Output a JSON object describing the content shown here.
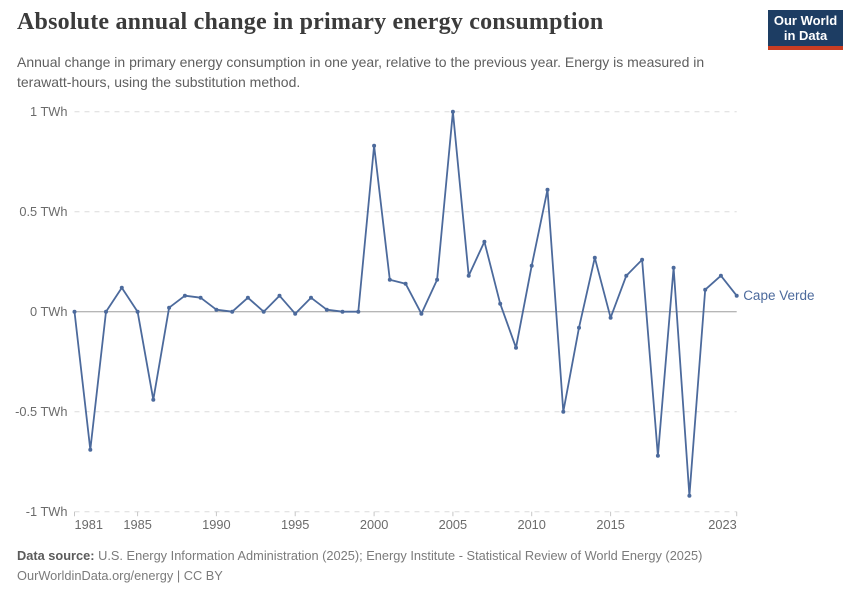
{
  "header": {
    "title": "Absolute annual change in primary energy consumption",
    "subtitle": "Annual change in primary energy consumption in one year, relative to the previous year. Energy is measured in terawatt-hours, using the substitution method.",
    "logo": {
      "line1": "Our World",
      "line2": "in Data",
      "bg": "#1d3d63",
      "stripe": "#c93d22"
    }
  },
  "chart_data": {
    "type": "line",
    "title": "Absolute annual change in primary energy consumption",
    "xlabel": "",
    "ylabel": "TWh",
    "ylim": [
      -1,
      1
    ],
    "grid": "horizontal-dashed",
    "legend_position": "right-of-line-end",
    "x": [
      1981,
      1982,
      1983,
      1984,
      1985,
      1986,
      1987,
      1988,
      1989,
      1990,
      1991,
      1992,
      1993,
      1994,
      1995,
      1996,
      1997,
      1998,
      1999,
      2000,
      2001,
      2002,
      2003,
      2004,
      2005,
      2006,
      2007,
      2008,
      2009,
      2010,
      2011,
      2012,
      2013,
      2014,
      2015,
      2016,
      2017,
      2018,
      2019,
      2020,
      2021,
      2022,
      2023
    ],
    "series": [
      {
        "name": "Cape Verde",
        "color": "#4c6a9c",
        "values": [
          0,
          -0.69,
          0,
          0.12,
          0,
          -0.44,
          0.02,
          0.08,
          0.07,
          0.01,
          0,
          0.07,
          0,
          0.08,
          -0.01,
          0.07,
          0.01,
          0,
          0,
          0.83,
          0.16,
          0.14,
          -0.01,
          0.16,
          1,
          0.18,
          0.35,
          0.04,
          -0.18,
          0.23,
          0.61,
          -0.5,
          -0.08,
          0.27,
          -0.03,
          0.18,
          0.26,
          -0.72,
          0.22,
          -0.92,
          0.11,
          0.18,
          0.08
        ]
      }
    ],
    "yticks": [
      {
        "v": 1,
        "label": "1 TWh"
      },
      {
        "v": 0.5,
        "label": "0.5 TWh"
      },
      {
        "v": 0,
        "label": "0 TWh"
      },
      {
        "v": -0.5,
        "label": "-0.5 TWh"
      },
      {
        "v": -1,
        "label": "-1 TWh"
      }
    ],
    "xticks": [
      {
        "v": 1981,
        "label": "1981"
      },
      {
        "v": 1985,
        "label": "1985"
      },
      {
        "v": 1990,
        "label": "1990"
      },
      {
        "v": 1995,
        "label": "1995"
      },
      {
        "v": 2000,
        "label": "2000"
      },
      {
        "v": 2005,
        "label": "2005"
      },
      {
        "v": 2010,
        "label": "2010"
      },
      {
        "v": 2015,
        "label": "2015"
      },
      {
        "v": 2023,
        "label": "2023"
      }
    ]
  },
  "colors": {
    "line": "#4c6a9c",
    "gridline": "#dcdcdc",
    "zero_line": "#9e9e9e",
    "tick_mark": "#c6c6c6",
    "axis_text": "#6b6b6b"
  },
  "footer": {
    "datasource_label": "Data source:",
    "datasource_text": "U.S. Energy Information Administration (2025); Energy Institute - Statistical Review of World Energy (2025)",
    "url": "OurWorldinData.org/energy",
    "separator": "|",
    "license": "CC BY"
  }
}
